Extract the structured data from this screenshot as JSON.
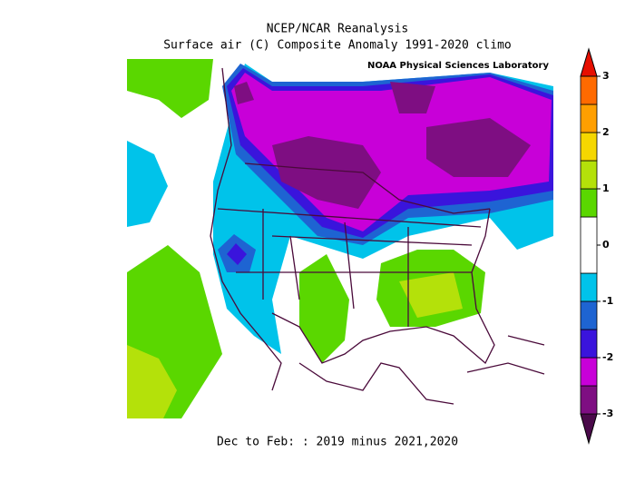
{
  "map": {
    "title": "NCEP/NCAR Reanalysis",
    "subtitle": "Surface air (C) Composite Anomaly 1991-2020 climo",
    "credit": "NOAA Physical Sciences Laboratory",
    "footer": "Dec to Feb: : 2019 minus 2021,2020",
    "colorbar": {
      "bounds": [
        -3,
        -2.5,
        -2,
        -1.5,
        -1,
        -0.5,
        0.5,
        1,
        1.5,
        2,
        2.5,
        3
      ],
      "colors": [
        "#4a0a4a",
        "#7e0e82",
        "#c800d8",
        "#3a14dc",
        "#1e64d2",
        "#00c3ea",
        "#ffffff",
        "#5ad700",
        "#b4e10a",
        "#f5d700",
        "#ff9f00",
        "#ff6a00",
        "#e60f00"
      ],
      "ticks": [
        -3,
        -2,
        -1,
        0,
        1,
        2,
        3
      ]
    }
  }
}
